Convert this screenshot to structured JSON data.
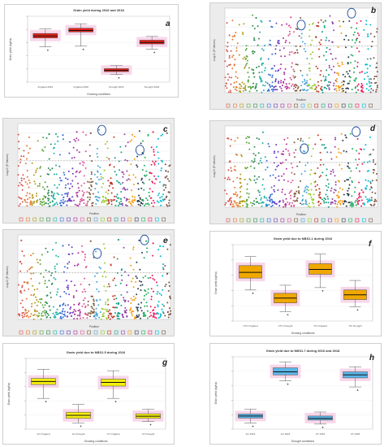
{
  "panels": {
    "a": {
      "letter": "a",
      "title": "Grain yield during 2016 and 2018",
      "xlabel": "Growing conditions",
      "ylabel": "Grain yield (kg/ha)",
      "ticks_y": [
        "5000",
        "4000",
        "3000",
        "2000",
        "1000"
      ]
    },
    "b": {
      "letter": "b",
      "xlabel": "Position",
      "ylabel": "-Log10 (P-Values)"
    },
    "c": {
      "letter": "c",
      "xlabel": "Position",
      "ylabel": "-Log10 (P-Values)"
    },
    "d": {
      "letter": "d",
      "xlabel": "Position",
      "ylabel": "-Log10 (P-Values)"
    },
    "e": {
      "letter": "e",
      "xlabel": "Position",
      "ylabel": "-Log10 (P-Values)"
    },
    "f": {
      "letter": "f",
      "title": "Grain yield due to NBS1.1 during 2016",
      "xlabel": "Growing conditions",
      "ylabel": "Grain yield (kg/ha)"
    },
    "g": {
      "letter": "g",
      "title": "Grain yield due to NBS1.5 during 2016",
      "xlabel": "Growing conditions",
      "ylabel": "Grain yield (kg/ha)"
    },
    "h": {
      "letter": "h",
      "title": "Grain yield due to NBS1.7 during 2016 and 2018",
      "xlabel": "Drought conditions",
      "ylabel": "Grain yield (kg/ha)"
    }
  },
  "colors": {
    "red": "#e8221a",
    "orange": "#f0a800",
    "yellow": "#f5ee10",
    "blue": "#5bb6e8",
    "pink": "#f2b6d8",
    "circle": "#1f4e9e"
  },
  "chart_data": [
    {
      "id": "a",
      "type": "box",
      "title": "Grain yield during 2016 and 2018",
      "xlabel": "Growing conditions",
      "ylabel": "Grain yield (kg/ha)",
      "categories": [
        "Irrigated 2016",
        "Irrigated 2018",
        "Drought 2016",
        "Drought 2018"
      ],
      "boxes": [
        {
          "lo": 3350,
          "q1": 3950,
          "med": 4080,
          "q3": 4250,
          "hi": 4550
        },
        {
          "lo": 3400,
          "q1": 4350,
          "med": 4450,
          "q3": 4600,
          "hi": 4900
        },
        {
          "lo": 1500,
          "q1": 1700,
          "med": 1780,
          "q3": 1900,
          "hi": 2100
        },
        {
          "lo": 3200,
          "q1": 3550,
          "med": 3650,
          "q3": 3800,
          "hi": 4050
        }
      ],
      "ylim": [
        1000,
        5400
      ]
    },
    {
      "id": "b",
      "type": "scatter",
      "xlabel": "Position",
      "ylabel": "-Log10 (P-Values)"
    },
    {
      "id": "c",
      "type": "scatter",
      "xlabel": "Position",
      "ylabel": "-Log10 (P-Values)"
    },
    {
      "id": "d",
      "type": "scatter",
      "xlabel": "Position",
      "ylabel": "-Log10 (P-Values)"
    },
    {
      "id": "e",
      "type": "scatter",
      "xlabel": "Position",
      "ylabel": "-Log10 (P-Values)"
    },
    {
      "id": "f",
      "type": "box",
      "title": "Grain yield due to NBS1.1 during 2016",
      "xlabel": "Growing conditions",
      "ylabel": "Grain yield (kg/ha)",
      "categories": [
        "CTC Irrigated",
        "CTC Drought",
        "TCI Irrigated",
        "TCI Drought"
      ],
      "boxes": [
        {
          "lo": 4050,
          "q1": 4300,
          "med": 4420,
          "q3": 4560,
          "hi": 4750
        },
        {
          "lo": 3600,
          "q1": 3780,
          "med": 3880,
          "q3": 3980,
          "hi": 4150
        },
        {
          "lo": 4100,
          "q1": 4380,
          "med": 4480,
          "q3": 4600,
          "hi": 4800
        },
        {
          "lo": 3700,
          "q1": 3850,
          "med": 3950,
          "q3": 4050,
          "hi": 4250
        }
      ],
      "ylim": [
        3400,
        5000
      ]
    },
    {
      "id": "g",
      "type": "box",
      "title": "Grain yield due to NBS1.5 during 2016",
      "xlabel": "Growing conditions",
      "ylabel": "Grain yield (kg/ha)",
      "categories": [
        "AC Irrigated",
        "AC Drought",
        "CT Irrigated",
        "CT Drought"
      ],
      "boxes": [
        {
          "lo": 3700,
          "q1": 4150,
          "med": 4250,
          "q3": 4350,
          "hi": 4650
        },
        {
          "lo": 2900,
          "q1": 3050,
          "med": 3150,
          "q3": 3250,
          "hi": 3500
        },
        {
          "lo": 3700,
          "q1": 4100,
          "med": 4220,
          "q3": 4330,
          "hi": 4600
        },
        {
          "lo": 2950,
          "q1": 3050,
          "med": 3120,
          "q3": 3200,
          "hi": 3350
        }
      ],
      "ylim": [
        2700,
        5000
      ]
    },
    {
      "id": "h",
      "type": "box",
      "title": "Grain yield due to NBS1.7 during 2016 and 2018",
      "xlabel": "Drought conditions",
      "ylabel": "Grain yield (kg/ha)",
      "categories": [
        "AC 2016",
        "AC 2018",
        "CT 2016",
        "CT 2018"
      ],
      "boxes": [
        {
          "lo": 1500,
          "q1": 1750,
          "med": 1850,
          "q3": 1950,
          "hi": 2200
        },
        {
          "lo": 3600,
          "q1": 3900,
          "med": 4050,
          "q3": 4250,
          "hi": 4550
        },
        {
          "lo": 1450,
          "q1": 1650,
          "med": 1730,
          "q3": 1850,
          "hi": 2050
        },
        {
          "lo": 3300,
          "q1": 3750,
          "med": 3900,
          "q3": 4050,
          "hi": 4300
        }
      ],
      "ylim": [
        1200,
        4800
      ]
    }
  ]
}
